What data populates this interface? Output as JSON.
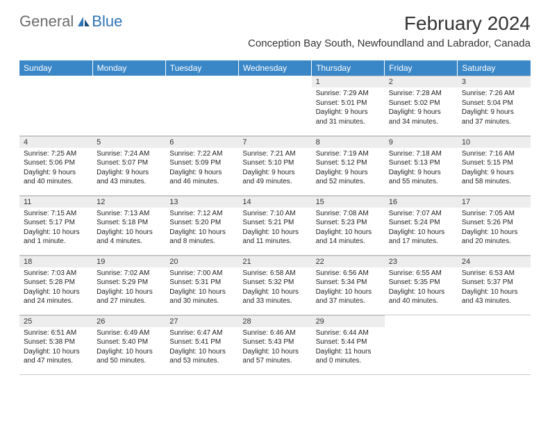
{
  "logo": {
    "general": "General",
    "blue": "Blue"
  },
  "title": "February 2024",
  "location": "Conception Bay South, Newfoundland and Labrador, Canada",
  "colors": {
    "header_bg": "#3a87c8",
    "header_text": "#ffffff",
    "daynum_bg": "#ededed",
    "border": "#c8c8c8",
    "logo_general": "#6b6b6b",
    "logo_blue": "#2e75b6"
  },
  "weekdays": [
    "Sunday",
    "Monday",
    "Tuesday",
    "Wednesday",
    "Thursday",
    "Friday",
    "Saturday"
  ],
  "layout": {
    "first_weekday_index": 4,
    "days_in_month": 29,
    "rows": 5,
    "cols": 7
  },
  "days": {
    "1": {
      "sunrise": "7:29 AM",
      "sunset": "5:01 PM",
      "daylight": "9 hours and 31 minutes."
    },
    "2": {
      "sunrise": "7:28 AM",
      "sunset": "5:02 PM",
      "daylight": "9 hours and 34 minutes."
    },
    "3": {
      "sunrise": "7:26 AM",
      "sunset": "5:04 PM",
      "daylight": "9 hours and 37 minutes."
    },
    "4": {
      "sunrise": "7:25 AM",
      "sunset": "5:06 PM",
      "daylight": "9 hours and 40 minutes."
    },
    "5": {
      "sunrise": "7:24 AM",
      "sunset": "5:07 PM",
      "daylight": "9 hours and 43 minutes."
    },
    "6": {
      "sunrise": "7:22 AM",
      "sunset": "5:09 PM",
      "daylight": "9 hours and 46 minutes."
    },
    "7": {
      "sunrise": "7:21 AM",
      "sunset": "5:10 PM",
      "daylight": "9 hours and 49 minutes."
    },
    "8": {
      "sunrise": "7:19 AM",
      "sunset": "5:12 PM",
      "daylight": "9 hours and 52 minutes."
    },
    "9": {
      "sunrise": "7:18 AM",
      "sunset": "5:13 PM",
      "daylight": "9 hours and 55 minutes."
    },
    "10": {
      "sunrise": "7:16 AM",
      "sunset": "5:15 PM",
      "daylight": "9 hours and 58 minutes."
    },
    "11": {
      "sunrise": "7:15 AM",
      "sunset": "5:17 PM",
      "daylight": "10 hours and 1 minute."
    },
    "12": {
      "sunrise": "7:13 AM",
      "sunset": "5:18 PM",
      "daylight": "10 hours and 4 minutes."
    },
    "13": {
      "sunrise": "7:12 AM",
      "sunset": "5:20 PM",
      "daylight": "10 hours and 8 minutes."
    },
    "14": {
      "sunrise": "7:10 AM",
      "sunset": "5:21 PM",
      "daylight": "10 hours and 11 minutes."
    },
    "15": {
      "sunrise": "7:08 AM",
      "sunset": "5:23 PM",
      "daylight": "10 hours and 14 minutes."
    },
    "16": {
      "sunrise": "7:07 AM",
      "sunset": "5:24 PM",
      "daylight": "10 hours and 17 minutes."
    },
    "17": {
      "sunrise": "7:05 AM",
      "sunset": "5:26 PM",
      "daylight": "10 hours and 20 minutes."
    },
    "18": {
      "sunrise": "7:03 AM",
      "sunset": "5:28 PM",
      "daylight": "10 hours and 24 minutes."
    },
    "19": {
      "sunrise": "7:02 AM",
      "sunset": "5:29 PM",
      "daylight": "10 hours and 27 minutes."
    },
    "20": {
      "sunrise": "7:00 AM",
      "sunset": "5:31 PM",
      "daylight": "10 hours and 30 minutes."
    },
    "21": {
      "sunrise": "6:58 AM",
      "sunset": "5:32 PM",
      "daylight": "10 hours and 33 minutes."
    },
    "22": {
      "sunrise": "6:56 AM",
      "sunset": "5:34 PM",
      "daylight": "10 hours and 37 minutes."
    },
    "23": {
      "sunrise": "6:55 AM",
      "sunset": "5:35 PM",
      "daylight": "10 hours and 40 minutes."
    },
    "24": {
      "sunrise": "6:53 AM",
      "sunset": "5:37 PM",
      "daylight": "10 hours and 43 minutes."
    },
    "25": {
      "sunrise": "6:51 AM",
      "sunset": "5:38 PM",
      "daylight": "10 hours and 47 minutes."
    },
    "26": {
      "sunrise": "6:49 AM",
      "sunset": "5:40 PM",
      "daylight": "10 hours and 50 minutes."
    },
    "27": {
      "sunrise": "6:47 AM",
      "sunset": "5:41 PM",
      "daylight": "10 hours and 53 minutes."
    },
    "28": {
      "sunrise": "6:46 AM",
      "sunset": "5:43 PM",
      "daylight": "10 hours and 57 minutes."
    },
    "29": {
      "sunrise": "6:44 AM",
      "sunset": "5:44 PM",
      "daylight": "11 hours and 0 minutes."
    }
  },
  "labels": {
    "sunrise": "Sunrise:",
    "sunset": "Sunset:",
    "daylight": "Daylight:"
  }
}
